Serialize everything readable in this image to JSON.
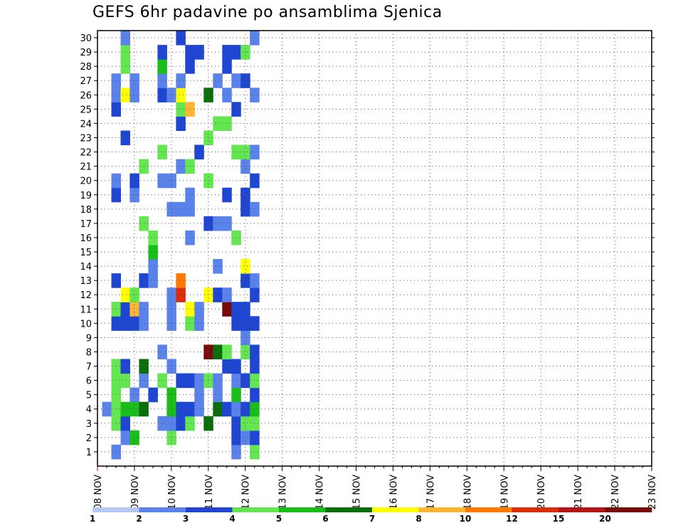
{
  "chart_data": {
    "type": "heatmap",
    "title": "GEFS 6hr padavine po ansamblima Sjenica",
    "y_tick_labels": [
      "1",
      "2",
      "3",
      "4",
      "5",
      "6",
      "7",
      "8",
      "9",
      "10",
      "11",
      "12",
      "13",
      "14",
      "15",
      "16",
      "17",
      "18",
      "19",
      "20",
      "21",
      "22",
      "23",
      "24",
      "25",
      "26",
      "27",
      "28",
      "29",
      "30"
    ],
    "ylim": [
      0,
      30
    ],
    "x_tick_labels": [
      "08 NOV",
      "09 NOV",
      "10 NOV",
      "11 NOV",
      "12 NOV",
      "13 NOV",
      "14 NOV",
      "15 NOV",
      "16 NOV",
      "17 NOV",
      "18 NOV",
      "19 NOV",
      "20 NOV",
      "21 NOV",
      "22 NOV",
      "23 NOV"
    ],
    "xlim_days": [
      0,
      15
    ],
    "grid": true,
    "legend": {
      "placement": "bottom",
      "colors": [
        "#b4c8f5",
        "#5a82eb",
        "#1e46d2",
        "#64e650",
        "#19be19",
        "#0a6e0a",
        "#ffff00",
        "#ffb432",
        "#ff7800",
        "#dc2d0a",
        "#b41414",
        "#780a0a"
      ],
      "labels": [
        "1",
        "2",
        "3",
        "4",
        "5",
        "6",
        "7",
        "8",
        "10",
        "12",
        "15",
        "20"
      ]
    },
    "level_bounds": [
      1,
      2,
      3,
      4,
      5,
      6,
      7,
      8,
      10,
      12,
      15,
      20
    ],
    "cells": [
      [
        0.25,
        4,
        1
      ],
      [
        0.5,
        1,
        1
      ],
      [
        0.5,
        3,
        3
      ],
      [
        0.5,
        4,
        3
      ],
      [
        0.5,
        5,
        3
      ],
      [
        0.5,
        6,
        3
      ],
      [
        0.5,
        7,
        3
      ],
      [
        0.5,
        10,
        2
      ],
      [
        0.5,
        11,
        3
      ],
      [
        0.5,
        13,
        2
      ],
      [
        0.5,
        19,
        2
      ],
      [
        0.5,
        20,
        1
      ],
      [
        0.5,
        25,
        2
      ],
      [
        0.5,
        26,
        1
      ],
      [
        0.5,
        27,
        1
      ],
      [
        0.75,
        2,
        1
      ],
      [
        0.75,
        3,
        2
      ],
      [
        0.75,
        4,
        4
      ],
      [
        0.75,
        6,
        3
      ],
      [
        0.75,
        7,
        2
      ],
      [
        0.75,
        10,
        2
      ],
      [
        0.75,
        11,
        2
      ],
      [
        0.75,
        12,
        6
      ],
      [
        0.75,
        23,
        2
      ],
      [
        0.75,
        26,
        6
      ],
      [
        0.75,
        28,
        3
      ],
      [
        0.75,
        29,
        3
      ],
      [
        0.75,
        30,
        1
      ],
      [
        1.0,
        2,
        4
      ],
      [
        1.0,
        4,
        4
      ],
      [
        1.0,
        5,
        1
      ],
      [
        1.0,
        10,
        2
      ],
      [
        1.0,
        11,
        7
      ],
      [
        1.0,
        12,
        3
      ],
      [
        1.0,
        19,
        1
      ],
      [
        1.0,
        20,
        2
      ],
      [
        1.0,
        26,
        1
      ],
      [
        1.0,
        27,
        1
      ],
      [
        1.25,
        4,
        5
      ],
      [
        1.25,
        6,
        1
      ],
      [
        1.25,
        7,
        5
      ],
      [
        1.25,
        10,
        1
      ],
      [
        1.25,
        11,
        1
      ],
      [
        1.25,
        13,
        2
      ],
      [
        1.25,
        17,
        3
      ],
      [
        1.25,
        21,
        3
      ],
      [
        1.5,
        5,
        2
      ],
      [
        1.5,
        13,
        1
      ],
      [
        1.5,
        14,
        1
      ],
      [
        1.5,
        15,
        4
      ],
      [
        1.5,
        16,
        3
      ],
      [
        1.75,
        3,
        1
      ],
      [
        1.75,
        6,
        3
      ],
      [
        1.75,
        8,
        1
      ],
      [
        1.75,
        20,
        1
      ],
      [
        1.75,
        22,
        3
      ],
      [
        1.75,
        26,
        2
      ],
      [
        1.75,
        27,
        1
      ],
      [
        1.75,
        28,
        4
      ],
      [
        1.75,
        29,
        2
      ],
      [
        2.0,
        2,
        3
      ],
      [
        2.0,
        3,
        1
      ],
      [
        2.0,
        4,
        4
      ],
      [
        2.0,
        5,
        4
      ],
      [
        2.0,
        7,
        1
      ],
      [
        2.0,
        10,
        1
      ],
      [
        2.0,
        11,
        1
      ],
      [
        2.0,
        12,
        1
      ],
      [
        2.0,
        18,
        1
      ],
      [
        2.0,
        20,
        1
      ],
      [
        2.0,
        26,
        1
      ],
      [
        2.25,
        3,
        2
      ],
      [
        2.25,
        4,
        2
      ],
      [
        2.25,
        6,
        2
      ],
      [
        2.25,
        12,
        9
      ],
      [
        2.25,
        13,
        8
      ],
      [
        2.25,
        18,
        1
      ],
      [
        2.25,
        21,
        1
      ],
      [
        2.25,
        24,
        2
      ],
      [
        2.25,
        25,
        3
      ],
      [
        2.25,
        26,
        6
      ],
      [
        2.25,
        27,
        1
      ],
      [
        2.25,
        30,
        2
      ],
      [
        2.5,
        3,
        3
      ],
      [
        2.5,
        4,
        2
      ],
      [
        2.5,
        6,
        2
      ],
      [
        2.5,
        10,
        3
      ],
      [
        2.5,
        11,
        6
      ],
      [
        2.5,
        16,
        1
      ],
      [
        2.5,
        18,
        1
      ],
      [
        2.5,
        19,
        1
      ],
      [
        2.5,
        21,
        3
      ],
      [
        2.5,
        25,
        7
      ],
      [
        2.5,
        28,
        2
      ],
      [
        2.5,
        29,
        2
      ],
      [
        2.75,
        4,
        1
      ],
      [
        2.75,
        5,
        1
      ],
      [
        2.75,
        6,
        1
      ],
      [
        2.75,
        10,
        1
      ],
      [
        2.75,
        11,
        1
      ],
      [
        2.75,
        22,
        2
      ],
      [
        2.75,
        29,
        2
      ],
      [
        3.0,
        3,
        5
      ],
      [
        3.0,
        6,
        3
      ],
      [
        3.0,
        8,
        11
      ],
      [
        3.0,
        12,
        6
      ],
      [
        3.0,
        17,
        2
      ],
      [
        3.0,
        20,
        3
      ],
      [
        3.0,
        23,
        3
      ],
      [
        3.0,
        26,
        5
      ],
      [
        3.25,
        4,
        5
      ],
      [
        3.25,
        5,
        1
      ],
      [
        3.25,
        6,
        1
      ],
      [
        3.25,
        8,
        5
      ],
      [
        3.25,
        12,
        2
      ],
      [
        3.25,
        14,
        1
      ],
      [
        3.25,
        17,
        1
      ],
      [
        3.25,
        24,
        3
      ],
      [
        3.25,
        27,
        1
      ],
      [
        3.5,
        4,
        2
      ],
      [
        3.5,
        7,
        2
      ],
      [
        3.5,
        8,
        3
      ],
      [
        3.5,
        11,
        11
      ],
      [
        3.5,
        12,
        1
      ],
      [
        3.5,
        17,
        1
      ],
      [
        3.5,
        19,
        2
      ],
      [
        3.5,
        24,
        3
      ],
      [
        3.5,
        26,
        1
      ],
      [
        3.5,
        28,
        2
      ],
      [
        3.5,
        29,
        2
      ],
      [
        3.75,
        1,
        1
      ],
      [
        3.75,
        2,
        2
      ],
      [
        3.75,
        3,
        2
      ],
      [
        3.75,
        4,
        1
      ],
      [
        3.75,
        5,
        4
      ],
      [
        3.75,
        6,
        1
      ],
      [
        3.75,
        7,
        2
      ],
      [
        3.75,
        10,
        2
      ],
      [
        3.75,
        11,
        2
      ],
      [
        3.75,
        16,
        3
      ],
      [
        3.75,
        22,
        3
      ],
      [
        3.75,
        25,
        2
      ],
      [
        3.75,
        27,
        1
      ],
      [
        3.75,
        29,
        2
      ],
      [
        4.0,
        2,
        1
      ],
      [
        4.0,
        3,
        3
      ],
      [
        4.0,
        4,
        2
      ],
      [
        4.0,
        6,
        2
      ],
      [
        4.0,
        8,
        3
      ],
      [
        4.0,
        9,
        1
      ],
      [
        4.0,
        10,
        2
      ],
      [
        4.0,
        11,
        2
      ],
      [
        4.0,
        13,
        2
      ],
      [
        4.0,
        14,
        6
      ],
      [
        4.0,
        18,
        2
      ],
      [
        4.0,
        19,
        2
      ],
      [
        4.0,
        21,
        1
      ],
      [
        4.0,
        22,
        3
      ],
      [
        4.0,
        27,
        2
      ],
      [
        4.0,
        29,
        3
      ],
      [
        4.25,
        1,
        3
      ],
      [
        4.25,
        2,
        2
      ],
      [
        4.25,
        3,
        3
      ],
      [
        4.25,
        4,
        4
      ],
      [
        4.25,
        5,
        2
      ],
      [
        4.25,
        6,
        3
      ],
      [
        4.25,
        7,
        2
      ],
      [
        4.25,
        8,
        2
      ],
      [
        4.25,
        10,
        2
      ],
      [
        4.25,
        12,
        2
      ],
      [
        4.25,
        13,
        1
      ],
      [
        4.25,
        18,
        1
      ],
      [
        4.25,
        20,
        2
      ],
      [
        4.25,
        22,
        1
      ],
      [
        4.25,
        26,
        1
      ],
      [
        4.25,
        30,
        1
      ]
    ],
    "sparse_cells_note_free": true
  }
}
